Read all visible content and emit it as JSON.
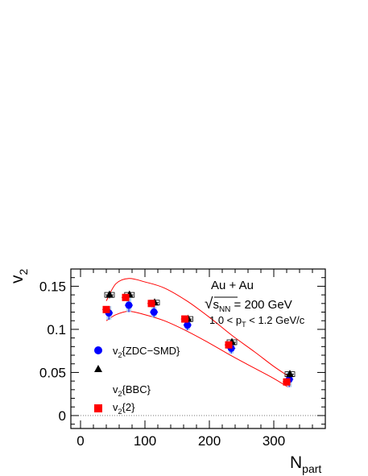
{
  "chart_data": {
    "type": "scatter",
    "xlim": [
      -15,
      380
    ],
    "ylim": [
      -0.015,
      0.17
    ],
    "xticks": [
      0,
      100,
      200,
      300
    ],
    "yticks": [
      0,
      0.05,
      0.1,
      0.15
    ],
    "xtick_labels": [
      "0",
      "100",
      "200",
      "300"
    ],
    "ytick_labels": [
      "0",
      "0.05",
      "0.1",
      "0.15"
    ],
    "xlabel": {
      "main": "N",
      "sub": "part"
    },
    "ylabel": {
      "main": "v",
      "sub": "2"
    },
    "grid": false,
    "zero_line": true,
    "legend_position": "bottom-left",
    "annotations": {
      "system": "Au + Au",
      "energy": {
        "prefix": "√",
        "s": "s",
        "sub": "NN",
        "rest": " = 200 GeV"
      },
      "pt_range": {
        "pre": "1.0 < p",
        "sub": "T",
        "post": " < 1.2 GeV/c"
      }
    },
    "series": [
      {
        "name": {
          "main": "v",
          "sub": "2",
          "post": "{ZDC−SMD}"
        },
        "marker": "circle",
        "color": "#0000ff",
        "x": [
          44,
          75,
          114,
          166,
          234,
          324
        ],
        "y": [
          0.119,
          0.128,
          0.12,
          0.105,
          0.078,
          0.042
        ],
        "yerr": [
          0.008,
          0.008,
          0.006,
          0.006,
          0.006,
          0.009
        ]
      },
      {
        "name": {
          "main": "v",
          "sub": "2",
          "post": "{BBC}"
        },
        "marker": "triangle",
        "color": "#000000",
        "x": [
          45,
          76,
          115,
          167,
          235,
          325
        ],
        "y": [
          0.14,
          0.14,
          0.131,
          0.112,
          0.085,
          0.048
        ],
        "yerr": [
          0.004,
          0.003,
          0.003,
          0.003,
          0.003,
          0.004
        ]
      },
      {
        "name": {
          "main": "v",
          "sub": "2",
          "post": "{2}"
        },
        "marker": "square",
        "color": "#ff0000",
        "x": [
          40,
          70,
          110,
          162,
          230,
          320
        ],
        "y": [
          0.123,
          0.137,
          0.13,
          0.112,
          0.082,
          0.039
        ],
        "yerr": [
          0.002,
          0.002,
          0.002,
          0.002,
          0.002,
          0.003
        ]
      }
    ],
    "bands": {
      "color": "#ff0000",
      "upper": {
        "x": [
          40,
          55,
          75,
          100,
          130,
          165,
          200,
          235,
          270,
          300,
          322
        ],
        "y": [
          0.133,
          0.153,
          0.159,
          0.155,
          0.148,
          0.133,
          0.114,
          0.093,
          0.074,
          0.057,
          0.046
        ]
      },
      "lower": {
        "x": [
          40,
          55,
          75,
          100,
          130,
          165,
          200,
          235,
          270,
          300,
          322
        ],
        "y": [
          0.11,
          0.117,
          0.121,
          0.117,
          0.11,
          0.098,
          0.084,
          0.069,
          0.055,
          0.043,
          0.033
        ]
      }
    },
    "colors": {
      "frame": "#000000",
      "band": "#ff0000",
      "systematic": "#9ec8f0",
      "zero_line": "#666666"
    }
  }
}
